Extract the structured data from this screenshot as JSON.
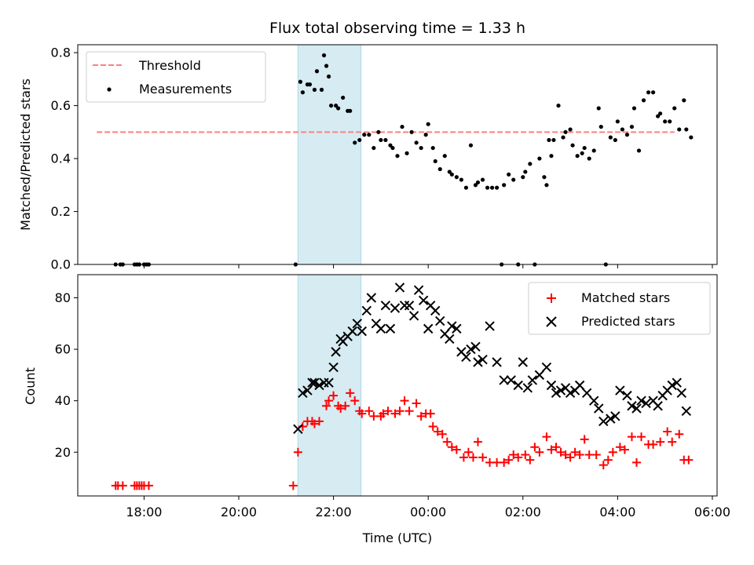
{
  "chart_data": [
    {
      "type": "scatter",
      "title": "Flux total observing time = 1.33 h",
      "ylabel": "Matched/Predicted stars",
      "xlabel": "",
      "xlim": [
        16.6,
        30.1
      ],
      "ylim": [
        0.0,
        0.83
      ],
      "y_ticks": [
        0.0,
        0.2,
        0.4,
        0.6,
        0.8
      ],
      "y_tick_labels": [
        "0.0",
        "0.2",
        "0.4",
        "0.6",
        "0.8"
      ],
      "x_ticks": [
        18,
        20,
        22,
        24,
        26,
        28,
        30
      ],
      "shaded_region": {
        "x0": 21.25,
        "x1": 22.58,
        "color": "#add8e6"
      },
      "legend": {
        "position": "top-left",
        "entries": [
          "Threshold",
          "Measurements"
        ]
      },
      "series": [
        {
          "name": "Threshold",
          "style": "dashed-line",
          "color": "#ff7f7f",
          "x": [
            17.0,
            29.2
          ],
          "y": [
            0.5,
            0.5
          ]
        },
        {
          "name": "Measurements",
          "style": "dots",
          "color": "#000000",
          "x": [
            17.4,
            17.5,
            17.55,
            17.8,
            17.85,
            17.9,
            18.0,
            18.05,
            18.1,
            21.2,
            21.3,
            21.35,
            21.45,
            21.5,
            21.6,
            21.65,
            21.75,
            21.8,
            21.85,
            21.9,
            21.95,
            22.05,
            22.1,
            22.2,
            22.3,
            22.35,
            22.45,
            22.55,
            22.65,
            22.75,
            22.85,
            22.95,
            23.0,
            23.1,
            23.2,
            23.25,
            23.35,
            23.45,
            23.55,
            23.65,
            23.75,
            23.85,
            23.95,
            24.0,
            24.1,
            24.15,
            24.25,
            24.35,
            24.45,
            24.5,
            24.6,
            24.7,
            24.8,
            24.9,
            25.0,
            25.05,
            25.15,
            25.25,
            25.35,
            25.45,
            25.55,
            25.6,
            25.7,
            25.8,
            25.9,
            26.0,
            26.05,
            26.15,
            26.25,
            26.35,
            26.45,
            26.5,
            26.55,
            26.6,
            26.65,
            26.75,
            26.85,
            26.9,
            27.0,
            27.05,
            27.15,
            27.25,
            27.3,
            27.4,
            27.5,
            27.6,
            27.65,
            27.75,
            27.85,
            27.95,
            28.0,
            28.1,
            28.2,
            28.3,
            28.35,
            28.45,
            28.55,
            28.65,
            28.75,
            28.85,
            28.9,
            29.0,
            29.1,
            29.2,
            29.3,
            29.4,
            29.45,
            29.55
          ],
          "y": [
            0.0,
            0.0,
            0.0,
            0.0,
            0.0,
            0.0,
            0.0,
            0.0,
            0.0,
            0.0,
            0.69,
            0.65,
            0.68,
            0.68,
            0.66,
            0.73,
            0.66,
            0.79,
            0.75,
            0.71,
            0.6,
            0.6,
            0.59,
            0.63,
            0.58,
            0.58,
            0.46,
            0.47,
            0.49,
            0.49,
            0.44,
            0.5,
            0.47,
            0.47,
            0.45,
            0.44,
            0.41,
            0.52,
            0.42,
            0.5,
            0.46,
            0.44,
            0.49,
            0.53,
            0.44,
            0.39,
            0.36,
            0.41,
            0.35,
            0.34,
            0.33,
            0.32,
            0.29,
            0.45,
            0.3,
            0.31,
            0.32,
            0.29,
            0.29,
            0.29,
            0.0,
            0.3,
            0.34,
            0.32,
            0.0,
            0.33,
            0.35,
            0.38,
            0.0,
            0.4,
            0.33,
            0.3,
            0.47,
            0.41,
            0.47,
            0.6,
            0.48,
            0.5,
            0.51,
            0.45,
            0.41,
            0.42,
            0.44,
            0.4,
            0.43,
            0.59,
            0.52,
            0.0,
            0.48,
            0.47,
            0.54,
            0.51,
            0.49,
            0.52,
            0.59,
            0.43,
            0.62,
            0.65,
            0.65,
            0.56,
            0.57,
            0.54,
            0.54,
            0.59,
            0.51,
            0.62,
            0.51,
            0.48
          ]
        }
      ]
    },
    {
      "type": "scatter",
      "title": "",
      "ylabel": "Count",
      "xlabel": "Time (UTC)",
      "xlim": [
        16.6,
        30.1
      ],
      "ylim": [
        3,
        89
      ],
      "y_ticks": [
        20,
        40,
        60,
        80
      ],
      "y_tick_labels": [
        "20",
        "40",
        "60",
        "80"
      ],
      "x_ticks": [
        18,
        20,
        22,
        24,
        26,
        28,
        30
      ],
      "x_tick_labels": [
        "18:00",
        "20:00",
        "22:00",
        "00:00",
        "02:00",
        "04:00",
        "06:00"
      ],
      "shaded_region": {
        "x0": 21.25,
        "x1": 22.58,
        "color": "#add8e6"
      },
      "legend": {
        "position": "top-right",
        "entries": [
          "Matched stars",
          "Predicted stars"
        ]
      },
      "series": [
        {
          "name": "Matched stars",
          "marker": "plus",
          "color": "#ff0000",
          "x": [
            17.4,
            17.45,
            17.55,
            17.8,
            17.85,
            17.9,
            17.95,
            18.0,
            18.1,
            21.15,
            21.25,
            21.35,
            21.45,
            21.55,
            21.6,
            21.7,
            21.85,
            21.9,
            22.0,
            22.1,
            22.15,
            22.25,
            22.35,
            22.45,
            22.55,
            22.6,
            22.75,
            22.85,
            23.0,
            23.05,
            23.15,
            23.3,
            23.4,
            23.5,
            23.6,
            23.75,
            23.85,
            23.95,
            24.05,
            24.1,
            24.2,
            24.3,
            24.4,
            24.5,
            24.6,
            24.75,
            24.85,
            24.95,
            25.05,
            25.15,
            25.3,
            25.45,
            25.6,
            25.7,
            25.8,
            25.9,
            26.05,
            26.15,
            26.25,
            26.35,
            26.5,
            26.6,
            26.7,
            26.8,
            26.9,
            27.0,
            27.1,
            27.2,
            27.3,
            27.4,
            27.55,
            27.7,
            27.8,
            27.9,
            28.05,
            28.15,
            28.3,
            28.4,
            28.5,
            28.65,
            28.75,
            28.9,
            29.05,
            29.15,
            29.3,
            29.4,
            29.5
          ],
          "y": [
            7,
            7,
            7,
            7,
            7,
            7,
            7,
            7,
            7,
            7,
            20,
            30,
            32,
            32,
            31,
            32,
            38,
            40,
            42,
            38,
            37,
            38,
            43,
            40,
            36,
            35,
            36,
            34,
            34,
            35,
            36,
            35,
            36,
            40,
            36,
            39,
            34,
            35,
            35,
            30,
            28,
            27,
            24,
            22,
            21,
            18,
            20,
            18,
            24,
            18,
            16,
            16,
            16,
            17,
            19,
            18,
            19,
            17,
            22,
            20,
            26,
            21,
            22,
            20,
            19,
            18,
            20,
            19,
            25,
            19,
            19,
            15,
            17,
            20,
            22,
            21,
            26,
            16,
            26,
            23,
            23,
            24,
            28,
            24,
            27,
            17,
            17
          ]
        },
        {
          "name": "Predicted stars",
          "marker": "x",
          "color": "#000000",
          "x": [
            21.25,
            21.35,
            21.45,
            21.55,
            21.6,
            21.7,
            21.8,
            21.9,
            22.0,
            22.05,
            22.15,
            22.2,
            22.3,
            22.4,
            22.5,
            22.6,
            22.7,
            22.8,
            22.9,
            23.0,
            23.1,
            23.2,
            23.3,
            23.4,
            23.5,
            23.6,
            23.7,
            23.8,
            23.9,
            24.0,
            24.05,
            24.15,
            24.25,
            24.35,
            24.45,
            24.5,
            24.6,
            24.7,
            24.8,
            24.9,
            25.0,
            25.05,
            25.15,
            25.3,
            25.45,
            25.6,
            25.75,
            25.9,
            26.0,
            26.1,
            26.2,
            26.35,
            26.5,
            26.6,
            26.7,
            26.8,
            26.9,
            27.0,
            27.1,
            27.2,
            27.35,
            27.5,
            27.6,
            27.7,
            27.85,
            27.95,
            28.05,
            28.2,
            28.3,
            28.4,
            28.5,
            28.6,
            28.75,
            28.85,
            28.95,
            29.05,
            29.15,
            29.25,
            29.35,
            29.45
          ],
          "y": [
            29,
            43,
            44,
            47,
            47,
            46,
            47,
            47,
            53,
            59,
            64,
            63,
            65,
            67,
            70,
            67,
            75,
            80,
            70,
            68,
            77,
            68,
            76,
            84,
            77,
            77,
            73,
            83,
            79,
            68,
            77,
            75,
            71,
            66,
            64,
            69,
            68,
            59,
            57,
            60,
            61,
            55,
            56,
            69,
            55,
            48,
            48,
            46,
            55,
            45,
            48,
            50,
            53,
            46,
            43,
            44,
            45,
            43,
            44,
            46,
            43,
            40,
            37,
            32,
            33,
            34,
            44,
            42,
            38,
            37,
            40,
            39,
            40,
            38,
            42,
            44,
            46,
            47,
            43,
            36
          ]
        }
      ]
    }
  ]
}
